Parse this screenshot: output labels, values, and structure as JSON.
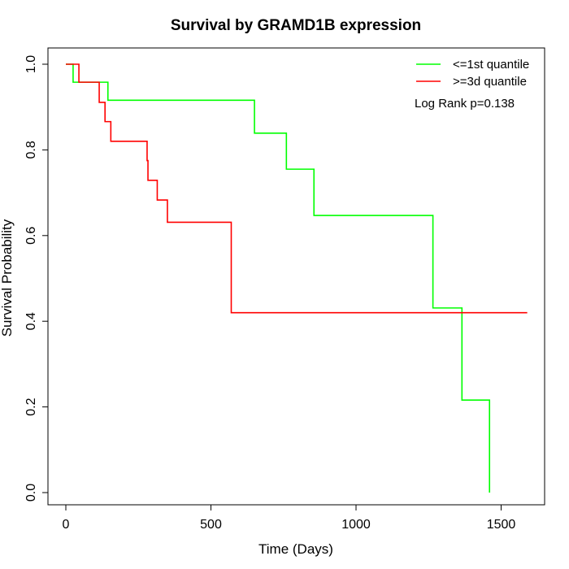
{
  "chart_data": {
    "type": "line",
    "title": "Survival by GRAMD1B expression",
    "xlabel": "Time (Days)",
    "ylabel": "Survival Probability",
    "xlim": [
      0,
      1600
    ],
    "ylim": [
      0,
      1.0
    ],
    "x_ticks": [
      "0",
      "500",
      "1000",
      "1500"
    ],
    "y_ticks": [
      "0.0",
      "0.2",
      "0.4",
      "0.6",
      "0.8",
      "1.0"
    ],
    "legend_position": "top-right",
    "annotation": "Log Rank p=0.138",
    "series": [
      {
        "name": "<=1st quantile",
        "color": "#00ff00",
        "step": true,
        "x": [
          0,
          25,
          145,
          650,
          760,
          855,
          1265,
          1365,
          1460
        ],
        "y": [
          1.0,
          0.958,
          0.916,
          0.839,
          0.755,
          0.647,
          0.431,
          0.216,
          0.0
        ]
      },
      {
        "name": ">=3d quantile",
        "color": "#ff0000",
        "step": true,
        "x": [
          0,
          45,
          115,
          135,
          155,
          280,
          283,
          315,
          350,
          570,
          1590
        ],
        "y": [
          1.0,
          0.958,
          0.911,
          0.866,
          0.82,
          0.775,
          0.729,
          0.683,
          0.631,
          0.42,
          0.42
        ]
      }
    ]
  }
}
